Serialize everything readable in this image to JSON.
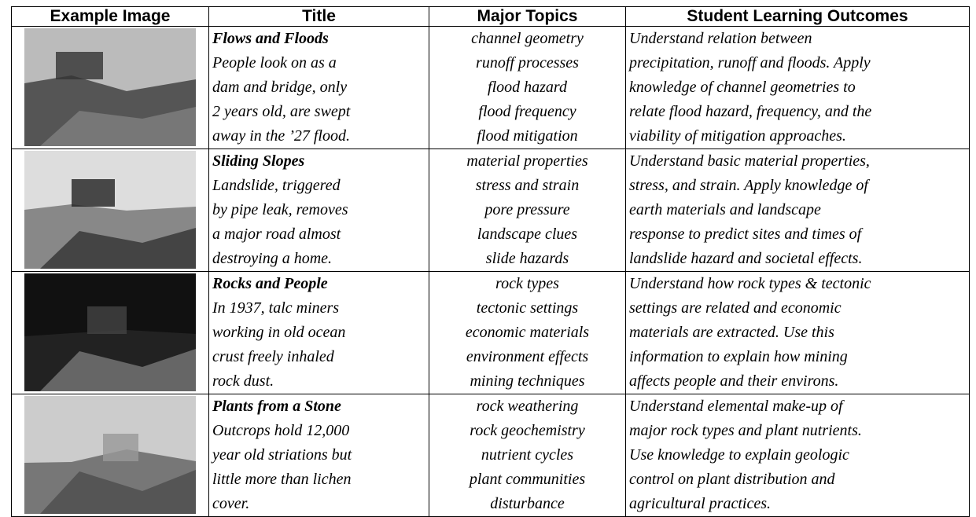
{
  "table": {
    "headers": [
      "Example Image",
      "Title",
      "Major Topics",
      "Student Learning Outcomes"
    ],
    "rows": [
      {
        "title": "Flows and Floods",
        "caption": [
          "People look on as a",
          "dam and bridge, only",
          "2 years old, are swept",
          "away in the ’27 flood."
        ],
        "topics": [
          "channel geometry",
          "runoff processes",
          "flood hazard",
          "flood frequency",
          "flood mitigation"
        ],
        "outcomes": [
          "Understand relation between",
          "precipitation, runoff and floods. Apply",
          "knowledge of channel geometries to",
          "relate flood hazard, frequency, and the",
          "viability of mitigation approaches."
        ]
      },
      {
        "title": "Sliding Slopes",
        "caption": [
          "Landslide, triggered",
          "by pipe leak, removes",
          "a major road almost",
          "destroying a home."
        ],
        "topics": [
          "material properties",
          "stress and strain",
          "pore pressure",
          "landscape clues",
          "slide hazards"
        ],
        "outcomes": [
          "Understand basic material properties,",
          "stress, and strain.  Apply knowledge of",
          "earth materials and landscape",
          "response to predict sites and times of",
          "landslide hazard and societal effects."
        ]
      },
      {
        "title": "Rocks and People",
        "caption": [
          "In 1937, talc miners",
          "working in old ocean",
          "crust freely inhaled",
          "rock dust."
        ],
        "topics": [
          "rock types",
          "tectonic settings",
          "economic materials",
          "environment effects",
          "mining techniques"
        ],
        "outcomes": [
          "Understand how rock types & tectonic",
          "settings are related and economic",
          "materials are extracted. Use this",
          "information to explain how mining",
          "affects people and their environs."
        ]
      },
      {
        "title": "Plants from a Stone",
        "caption": [
          "Outcrops hold 12,000",
          "year old striations but",
          "little more than lichen",
          "cover."
        ],
        "topics": [
          "rock weathering",
          "rock geochemistry",
          "nutrient cycles",
          "plant communities",
          "disturbance"
        ],
        "outcomes": [
          "Understand elemental make-up of",
          "major rock types and plant nutrients.",
          "Use knowledge to explain geologic",
          "control on plant distribution and",
          "agricultural practices."
        ]
      }
    ]
  }
}
